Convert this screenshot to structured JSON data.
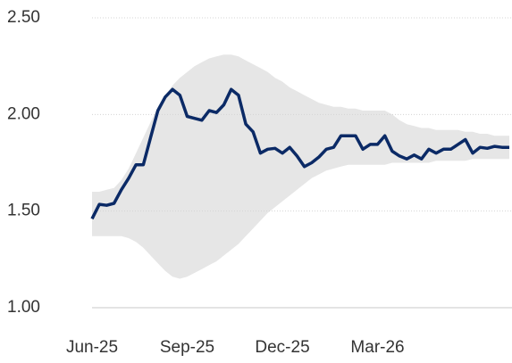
{
  "chart_data": {
    "type": "line",
    "categories": [
      "Jun-25",
      null,
      null,
      null,
      null,
      null,
      null,
      null,
      null,
      null,
      null,
      null,
      null,
      "Sep-25",
      null,
      null,
      null,
      null,
      null,
      null,
      null,
      null,
      null,
      null,
      null,
      null,
      "Dec-25",
      null,
      null,
      null,
      null,
      null,
      null,
      null,
      null,
      null,
      null,
      null,
      null,
      "Mar-26",
      null,
      null,
      null,
      null,
      null,
      null,
      null,
      null,
      null,
      null,
      null,
      null,
      null,
      null,
      null,
      null,
      null,
      null
    ],
    "series": [
      {
        "color": "#0b2a66",
        "values": [
          1.46,
          1.535,
          1.53,
          1.54,
          1.61,
          1.67,
          1.74,
          1.74,
          1.88,
          2.02,
          2.09,
          2.13,
          2.1,
          1.99,
          1.98,
          1.97,
          2.02,
          2.01,
          2.05,
          2.13,
          2.1,
          1.95,
          1.91,
          1.8,
          1.82,
          1.825,
          1.8,
          1.83,
          1.785,
          1.73,
          1.75,
          1.78,
          1.82,
          1.83,
          1.89,
          1.89,
          1.89,
          1.82,
          1.845,
          1.845,
          1.89,
          1.81,
          1.785,
          1.77,
          1.79,
          1.77,
          1.82,
          1.8,
          1.82,
          1.82,
          1.845,
          1.87,
          1.8,
          1.83,
          1.825,
          1.835,
          1.83,
          1.83
        ]
      }
    ],
    "band": {
      "color": "#e6e6e6",
      "upper": [
        1.6,
        1.6,
        1.61,
        1.62,
        1.66,
        1.72,
        1.8,
        1.88,
        1.96,
        2.04,
        2.1,
        2.15,
        2.19,
        2.22,
        2.25,
        2.27,
        2.29,
        2.3,
        2.31,
        2.31,
        2.3,
        2.28,
        2.26,
        2.24,
        2.22,
        2.19,
        2.17,
        2.14,
        2.12,
        2.1,
        2.08,
        2.06,
        2.05,
        2.04,
        2.04,
        2.03,
        2.03,
        2.02,
        2.02,
        2.02,
        2.02,
        2.0,
        1.97,
        1.95,
        1.94,
        1.93,
        1.93,
        1.92,
        1.92,
        1.92,
        1.92,
        1.91,
        1.91,
        1.9,
        1.9,
        1.89,
        1.89,
        1.89
      ],
      "lower": [
        1.37,
        1.37,
        1.37,
        1.37,
        1.37,
        1.36,
        1.34,
        1.31,
        1.27,
        1.23,
        1.19,
        1.16,
        1.15,
        1.16,
        1.18,
        1.2,
        1.22,
        1.24,
        1.27,
        1.3,
        1.33,
        1.37,
        1.41,
        1.45,
        1.49,
        1.52,
        1.55,
        1.58,
        1.61,
        1.64,
        1.67,
        1.69,
        1.71,
        1.72,
        1.73,
        1.74,
        1.74,
        1.74,
        1.74,
        1.74,
        1.74,
        1.75,
        1.75,
        1.75,
        1.75,
        1.75,
        1.75,
        1.76,
        1.76,
        1.76,
        1.76,
        1.76,
        1.77,
        1.77,
        1.77,
        1.77,
        1.77,
        1.77
      ]
    },
    "ylim": [
      1.0,
      2.5
    ],
    "yticks": [
      {
        "value": 1.0,
        "label": "1.00"
      },
      {
        "value": 1.5,
        "label": "1.50"
      },
      {
        "value": 2.0,
        "label": "2.00"
      },
      {
        "value": 2.5,
        "label": "2.50"
      }
    ],
    "grid": true
  }
}
